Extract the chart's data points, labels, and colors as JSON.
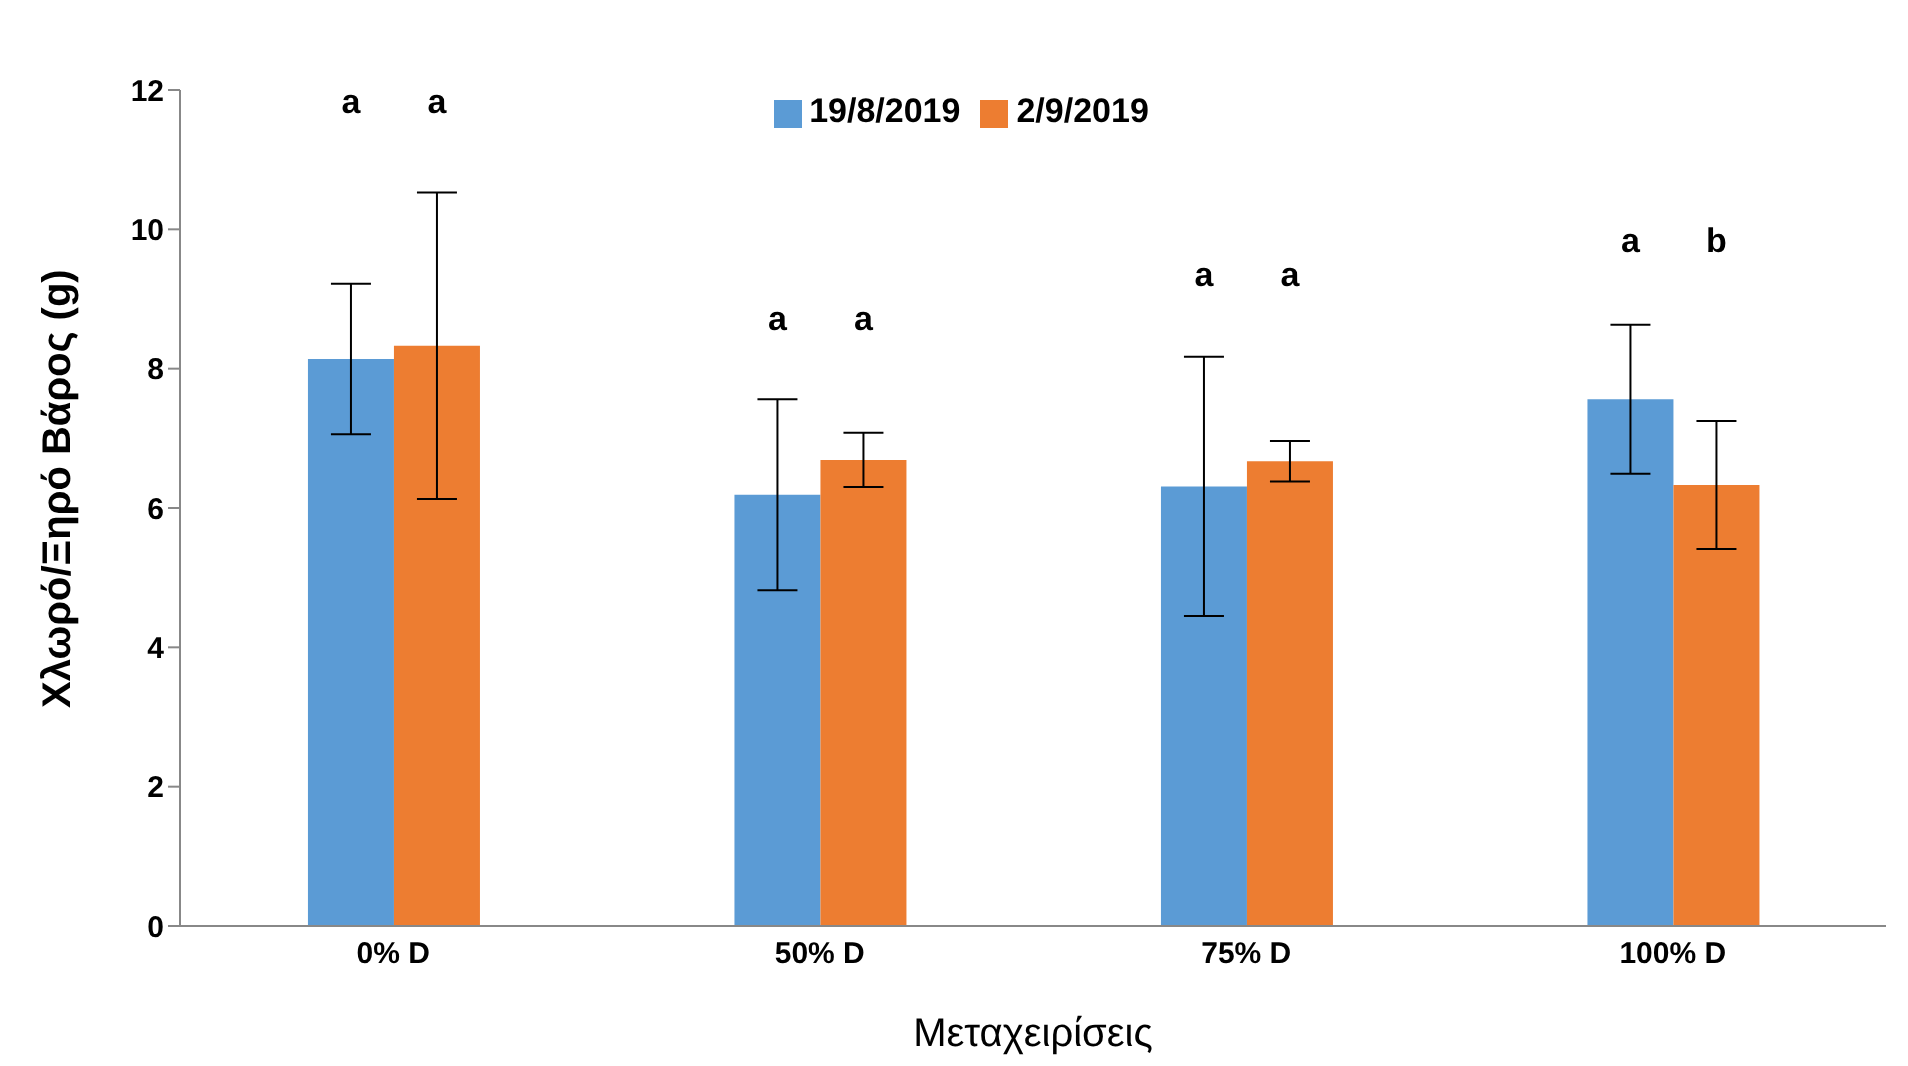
{
  "chart_data": {
    "type": "bar",
    "xlabel": "Μεταχειρίσεις",
    "ylabel": "Χλωρό/Ξηρό Βάρος (g)",
    "categories": [
      "0% D",
      "50% D",
      "75% D",
      "100% D"
    ],
    "series": [
      {
        "name": "19/8/2019",
        "color": "#5b9bd5",
        "values": [
          8.14,
          6.19,
          6.31,
          7.56
        ],
        "errors": [
          1.08,
          1.37,
          1.86,
          1.07
        ]
      },
      {
        "name": "2/9/2019",
        "color": "#ed7d31",
        "values": [
          8.33,
          6.69,
          6.67,
          6.33
        ],
        "errors": [
          2.2,
          0.39,
          0.29,
          0.92
        ]
      }
    ],
    "ylim": [
      0,
      12
    ],
    "yticks": [
      0,
      2,
      4,
      6,
      8,
      10,
      12
    ],
    "grid": false,
    "legend": "top",
    "annotations": [
      "a",
      "a",
      "a",
      "a",
      "a",
      "a",
      "a",
      "b"
    ]
  }
}
